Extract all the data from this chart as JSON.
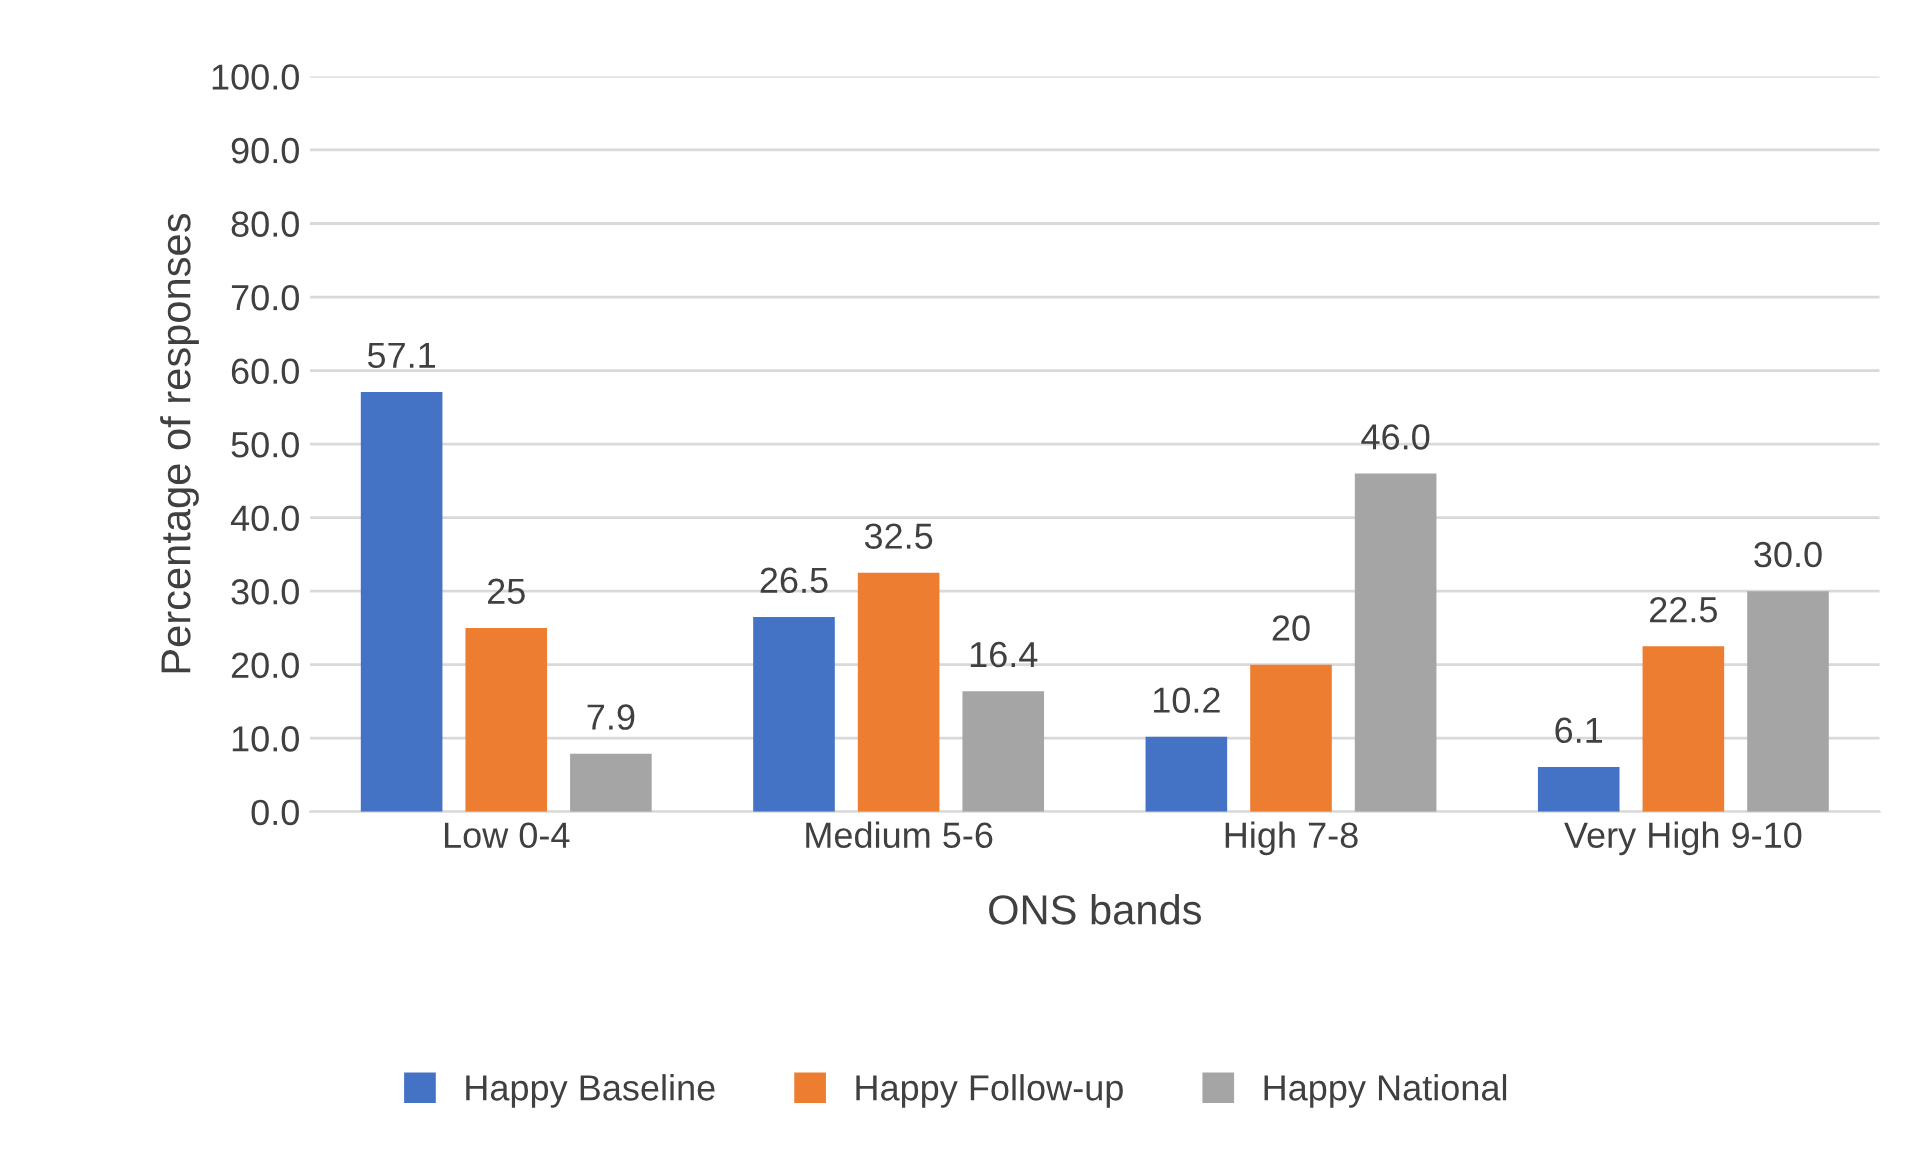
{
  "chart_data": {
    "type": "bar",
    "xlabel": "ONS bands",
    "ylabel": "Percentage of responses",
    "categories": [
      "Low 0-4",
      "Medium 5-6",
      "High 7-8",
      "Very High 9-10"
    ],
    "series": [
      {
        "name": "Happy Baseline",
        "color": "#4472c4",
        "values": [
          57.1,
          26.5,
          10.2,
          6.1
        ],
        "value_labels": [
          "57.1",
          "26.5",
          "10.2",
          "6.1"
        ]
      },
      {
        "name": "Happy Follow-up",
        "color": "#ed7d31",
        "values": [
          25,
          32.5,
          20,
          22.5
        ],
        "value_labels": [
          "25",
          "32.5",
          "20",
          "22.5"
        ]
      },
      {
        "name": "Happy National",
        "color": "#a5a5a5",
        "values": [
          7.9,
          16.4,
          46.0,
          30.0
        ],
        "value_labels": [
          "7.9",
          "16.4",
          "46.0",
          "30.0"
        ]
      }
    ],
    "ylim": [
      0,
      100
    ],
    "yticks": [
      {
        "value": 0,
        "label": "0.0"
      },
      {
        "value": 10,
        "label": "10.0"
      },
      {
        "value": 20,
        "label": "20.0"
      },
      {
        "value": 30,
        "label": "30.0"
      },
      {
        "value": 40,
        "label": "40.0"
      },
      {
        "value": 50,
        "label": "50.0"
      },
      {
        "value": 60,
        "label": "60.0"
      },
      {
        "value": 70,
        "label": "70.0"
      },
      {
        "value": 80,
        "label": "80.0"
      },
      {
        "value": 90,
        "label": "90.0"
      },
      {
        "value": 100,
        "label": "100.0"
      }
    ],
    "grid": "y",
    "legend": "bottom"
  }
}
